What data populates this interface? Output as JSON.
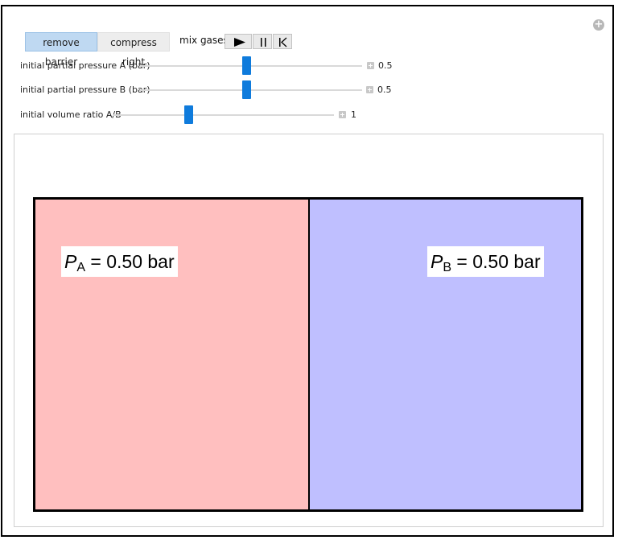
{
  "controls": {
    "remove_barrier": "remove barrier",
    "compress_right": "compress right",
    "mix_gases": "mix gases"
  },
  "sliders": [
    {
      "label": "initial partial pressure A (bar)",
      "value": "0.5",
      "fraction": 0.48
    },
    {
      "label": "initial partial pressure B (bar)",
      "value": "0.5",
      "fraction": 0.48
    },
    {
      "label": "initial volume ratio A/B",
      "value": "1",
      "fraction": 0.34
    }
  ],
  "display": {
    "pressure_a": {
      "symbol": "P",
      "subscript": "A",
      "text": " = 0.50 bar"
    },
    "pressure_b": {
      "symbol": "P",
      "subscript": "B",
      "text": " = 0.50 bar"
    },
    "colors": {
      "chamber_a": "#ffbfbf",
      "chamber_b": "#bfbfff"
    }
  }
}
